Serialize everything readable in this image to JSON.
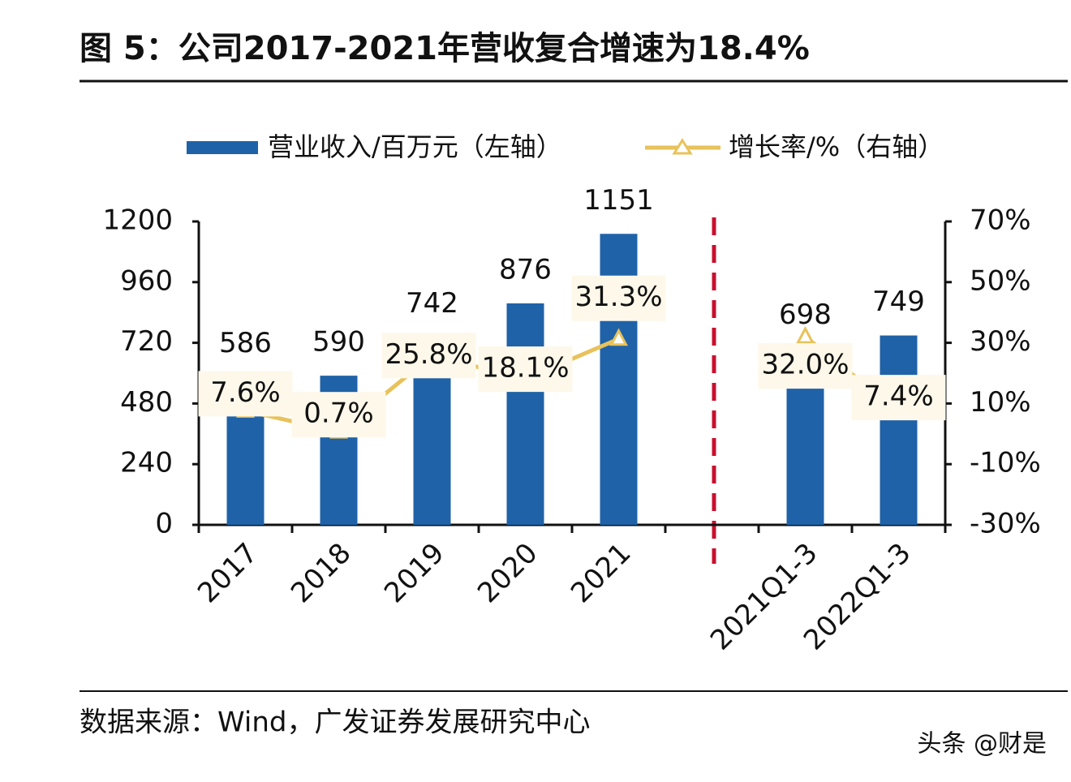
{
  "chart_data": {
    "type": "combo",
    "title": "图 5：公司2017-2021年营收复合增速为18.4%",
    "categories": [
      "2017",
      "2018",
      "2019",
      "2020",
      "2021",
      null,
      "2021Q1-3",
      "2022Q1-3"
    ],
    "series": [
      {
        "name": "营业收入/百万元（左轴）",
        "type": "bar",
        "color": "#1f62a8",
        "values": [
          586,
          590,
          742,
          876,
          1151,
          null,
          698,
          749
        ]
      },
      {
        "name": "增长率/%（右轴）",
        "type": "line",
        "axis": "y2",
        "color": "#e8c25a",
        "values": [
          7.6,
          0.7,
          25.8,
          18.1,
          31.3,
          null,
          32.0,
          7.4
        ],
        "value_labels": [
          "7.6%",
          "0.7%",
          "25.8%",
          "18.1%",
          "31.3%",
          null,
          "32.0%",
          "7.4%"
        ]
      }
    ],
    "ylim": [
      0,
      1200
    ],
    "yticks": [
      0,
      240,
      480,
      720,
      960,
      1200
    ],
    "y2lim": [
      -30,
      70
    ],
    "y2ticks": [
      {
        "value": -30,
        "label": "-30%"
      },
      {
        "value": -10,
        "label": "-10%"
      },
      {
        "value": 10,
        "label": "10%"
      },
      {
        "value": 30,
        "label": "30%"
      },
      {
        "value": 50,
        "label": "50%"
      },
      {
        "value": 70,
        "label": "70%"
      }
    ],
    "source": "数据来源：Wind，广发证券发展研究中心",
    "watermark": "头条 @财是"
  }
}
